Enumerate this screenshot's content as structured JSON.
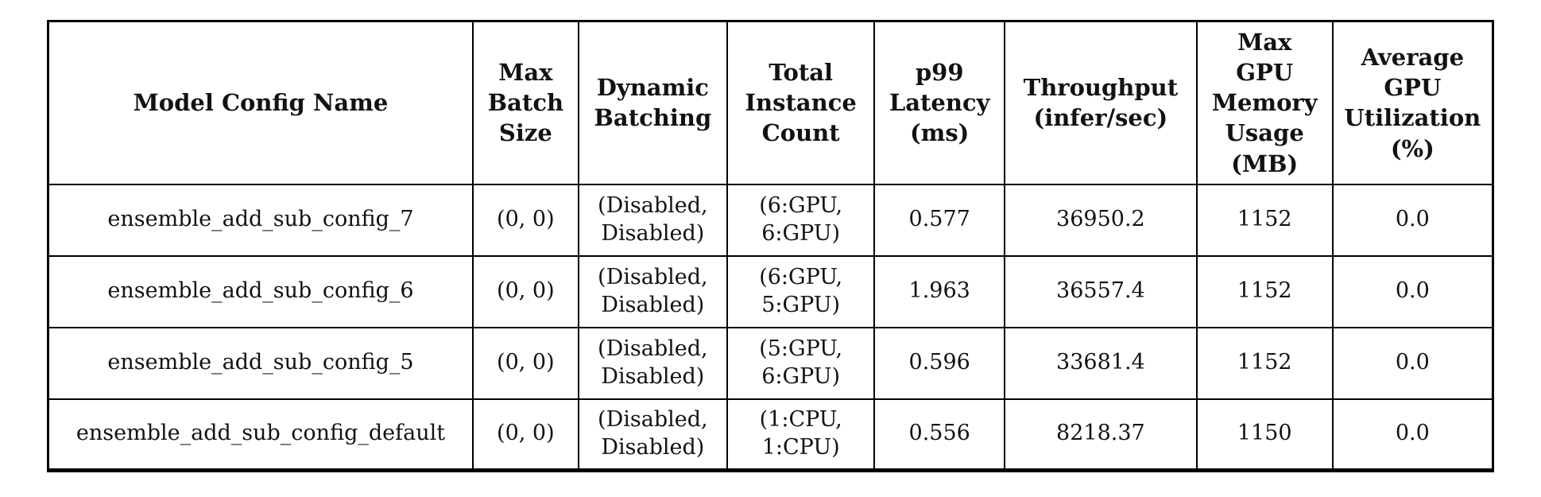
{
  "colors": {
    "background": "#ffffff",
    "border": "#000000",
    "text": "#121212"
  },
  "report_table": {
    "columns": [
      {
        "id": "model_config_name",
        "label": "Model Config Name"
      },
      {
        "id": "max_batch_size",
        "label": "Max\nBatch\nSize"
      },
      {
        "id": "dynamic_batching",
        "label": "Dynamic\nBatching"
      },
      {
        "id": "total_instance_count",
        "label": "Total\nInstance\nCount"
      },
      {
        "id": "p99_latency_ms",
        "label": "p99\nLatency\n(ms)"
      },
      {
        "id": "throughput_infer_per_sec",
        "label": "Throughput\n(infer/sec)"
      },
      {
        "id": "max_gpu_memory_usage_mb",
        "label": "Max\nGPU\nMemory\nUsage\n(MB)"
      },
      {
        "id": "average_gpu_utilization_pct",
        "label": "Average\nGPU\nUtilization\n(%)"
      }
    ],
    "rows": [
      {
        "model_config_name": "ensemble_add_sub_config_7",
        "max_batch_size": "(0, 0)",
        "dynamic_batching": "(Disabled, Disabled)",
        "total_instance_count": "(6:GPU, 6:GPU)",
        "p99_latency_ms": "0.577",
        "throughput_infer_per_sec": "36950.2",
        "max_gpu_memory_usage_mb": "1152",
        "average_gpu_utilization_pct": "0.0"
      },
      {
        "model_config_name": "ensemble_add_sub_config_6",
        "max_batch_size": "(0, 0)",
        "dynamic_batching": "(Disabled, Disabled)",
        "total_instance_count": "(6:GPU, 5:GPU)",
        "p99_latency_ms": "1.963",
        "throughput_infer_per_sec": "36557.4",
        "max_gpu_memory_usage_mb": "1152",
        "average_gpu_utilization_pct": "0.0"
      },
      {
        "model_config_name": "ensemble_add_sub_config_5",
        "max_batch_size": "(0, 0)",
        "dynamic_batching": "(Disabled, Disabled)",
        "total_instance_count": "(5:GPU, 6:GPU)",
        "p99_latency_ms": "0.596",
        "throughput_infer_per_sec": "33681.4",
        "max_gpu_memory_usage_mb": "1152",
        "average_gpu_utilization_pct": "0.0"
      },
      {
        "model_config_name": "ensemble_add_sub_config_default",
        "max_batch_size": "(0, 0)",
        "dynamic_batching": "(Disabled, Disabled)",
        "total_instance_count": "(1:CPU, 1:CPU)",
        "p99_latency_ms": "0.556",
        "throughput_infer_per_sec": "8218.37",
        "max_gpu_memory_usage_mb": "1150",
        "average_gpu_utilization_pct": "0.0"
      }
    ]
  }
}
